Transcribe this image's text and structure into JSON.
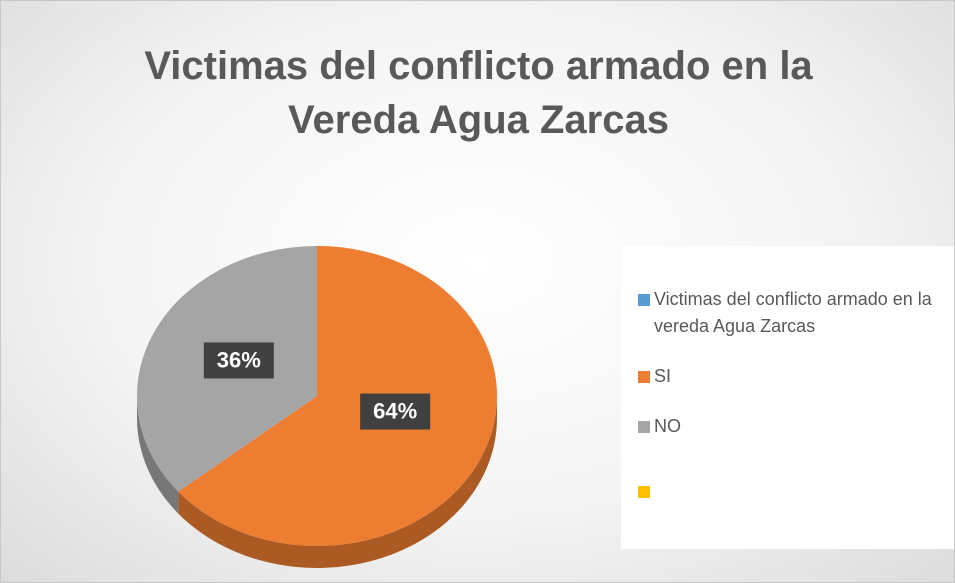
{
  "chart_data": {
    "type": "pie",
    "title": "Victimas del conflicto armado en la Vereda Agua Zarcas",
    "categories": [
      "Victimas del conflicto armado en la vereda Agua Zarcas",
      "SI",
      "NO",
      null
    ],
    "values": [
      0,
      64,
      36,
      0
    ],
    "value_labels": [
      null,
      "64%",
      "36%",
      null
    ],
    "colors": [
      "#5b9bd5",
      "#ed7d31",
      "#a5a5a5",
      "#ffc000"
    ],
    "legend": "right"
  }
}
